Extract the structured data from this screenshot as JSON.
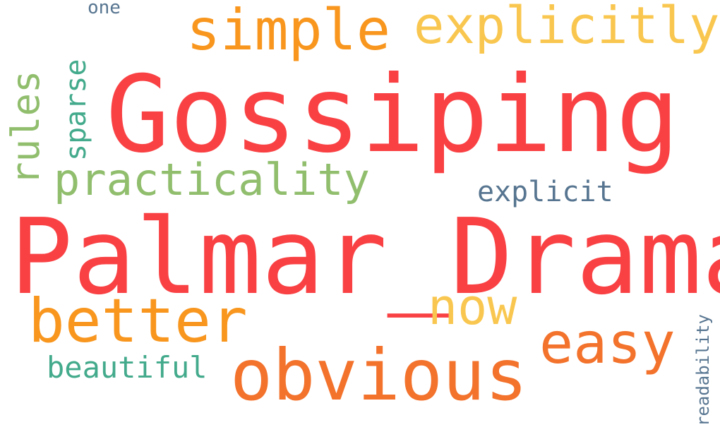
{
  "words": [
    {
      "text": "Gossiping",
      "color": "#f94144"
    },
    {
      "text": "Palmar_Drama",
      "color": "#f94144"
    },
    {
      "text": "simple",
      "color": "#f8961e"
    },
    {
      "text": "explicitly",
      "color": "#f9c74f"
    },
    {
      "text": "practicality",
      "color": "#90be6d"
    },
    {
      "text": "explicit",
      "color": "#577590"
    },
    {
      "text": "now",
      "color": "#f9c74f"
    },
    {
      "text": "better",
      "color": "#f8961e"
    },
    {
      "text": "easy",
      "color": "#f3722c"
    },
    {
      "text": "obvious",
      "color": "#f3722c"
    },
    {
      "text": "beautiful",
      "color": "#43aa8b"
    },
    {
      "text": "one",
      "color": "#577590"
    },
    {
      "text": "rules",
      "color": "#90be6d"
    },
    {
      "text": "sparse",
      "color": "#43aa8b"
    },
    {
      "text": "readability",
      "color": "#577590"
    }
  ]
}
